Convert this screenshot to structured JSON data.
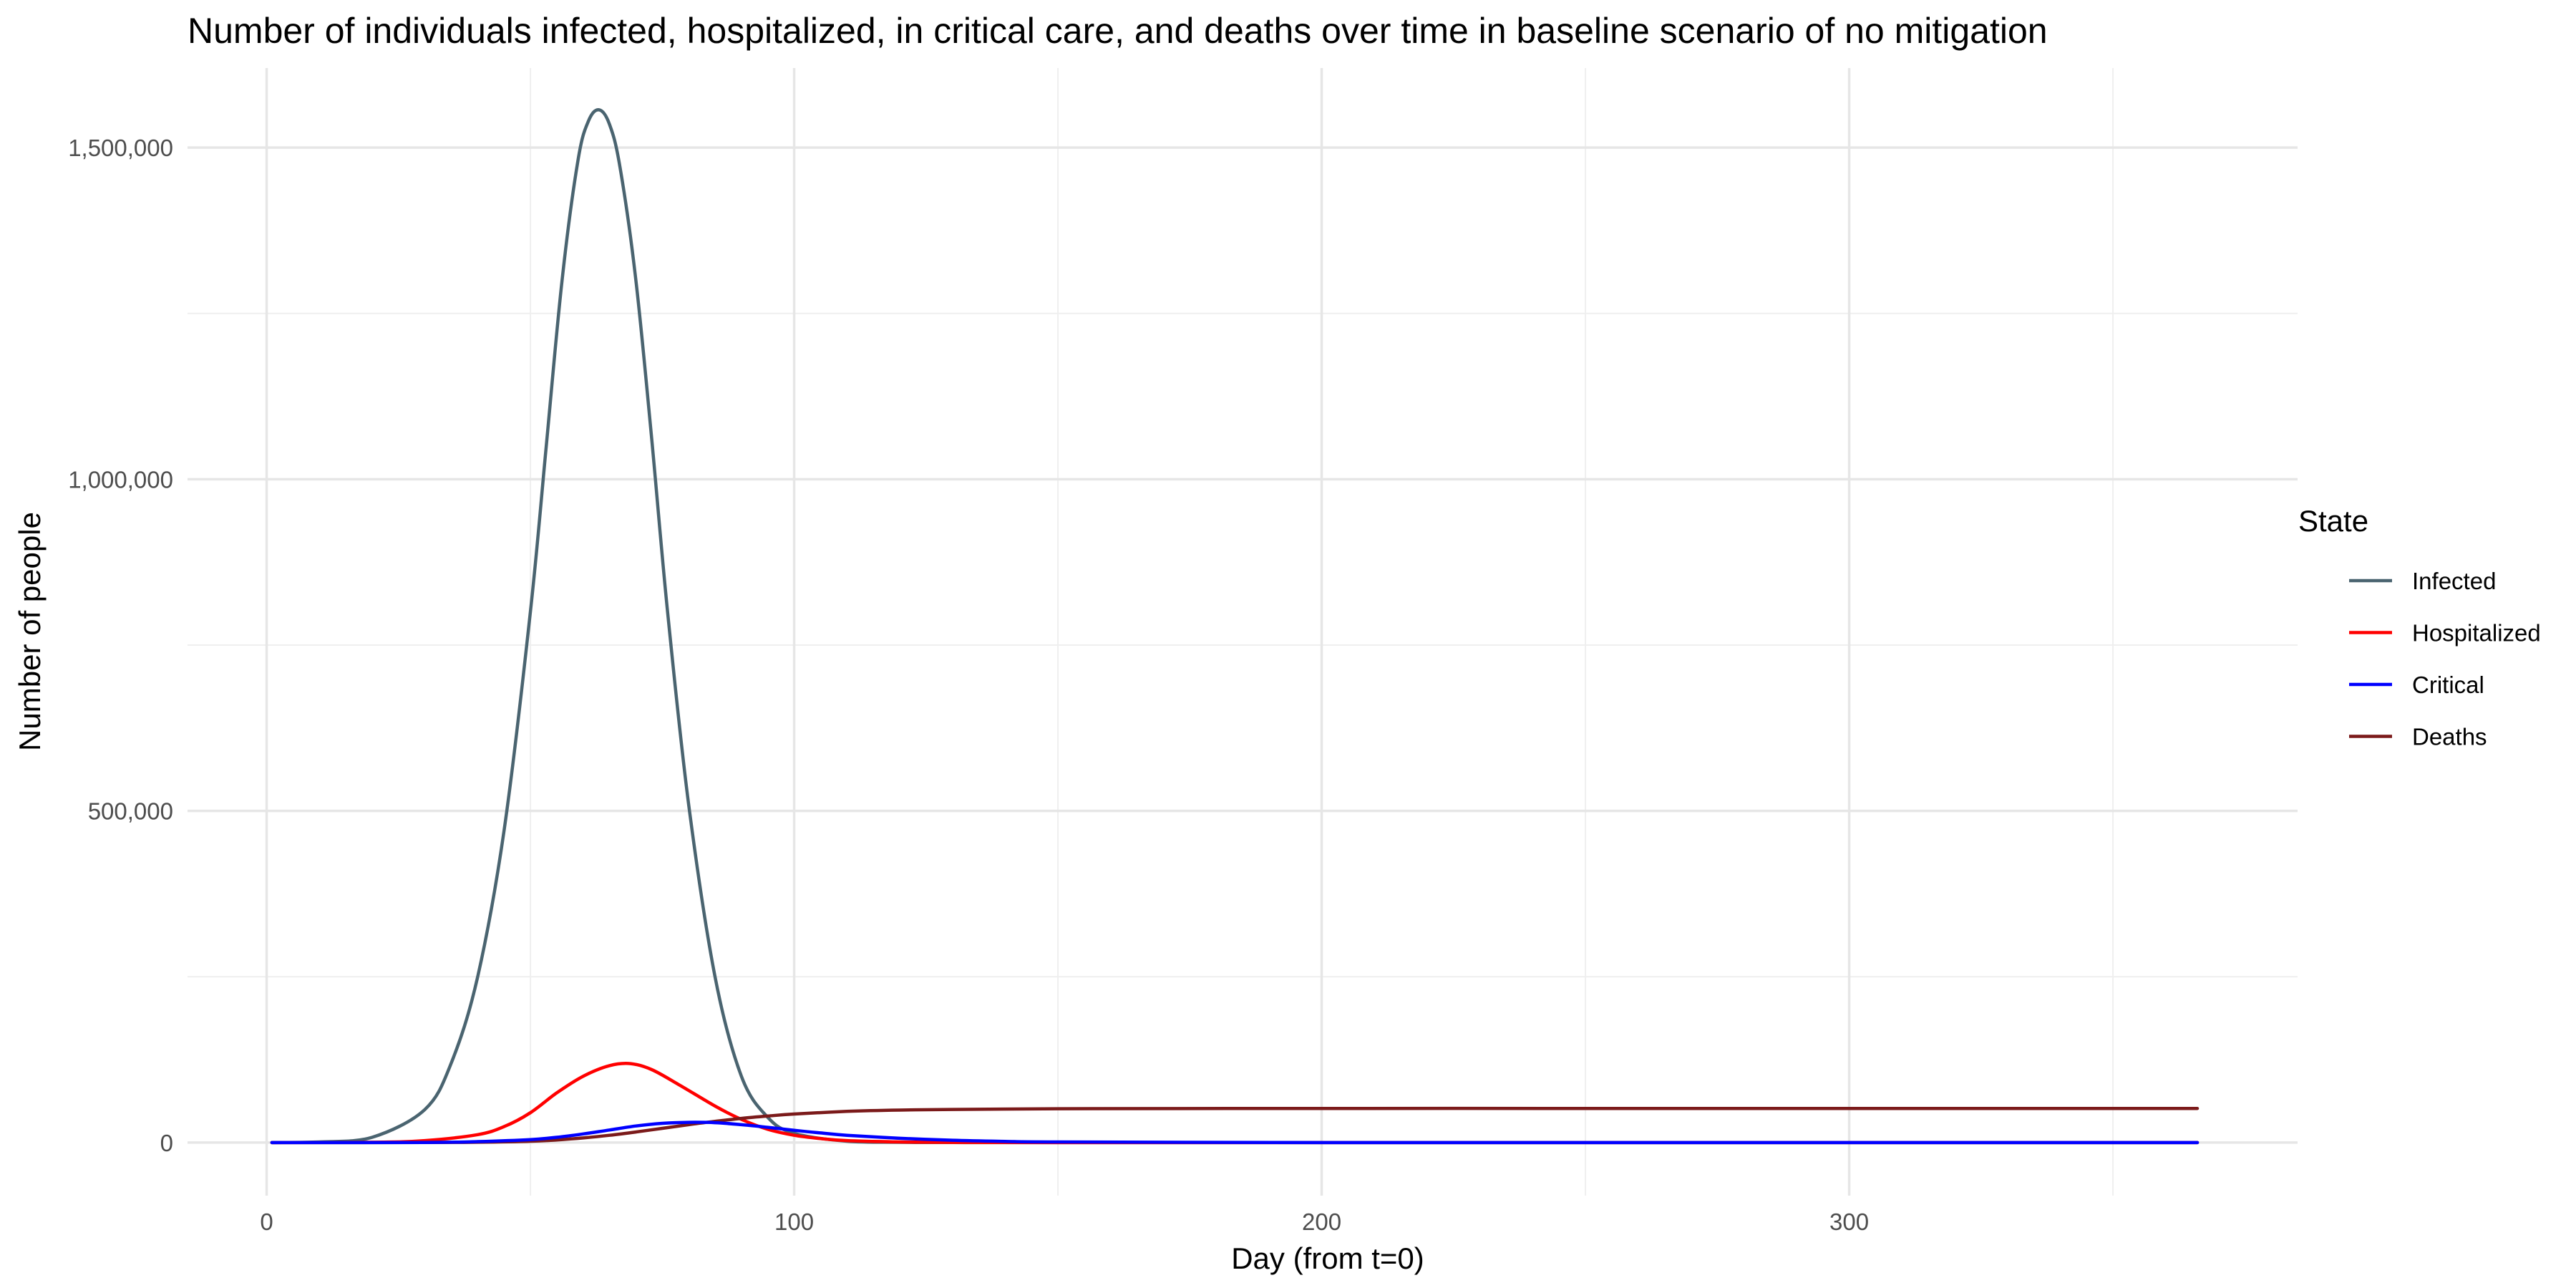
{
  "chart_data": {
    "type": "line",
    "title": "Number of individuals infected, hospitalized, in critical care, and deaths over time in baseline scenario of no mitigation",
    "xlabel": "Day (from t=0)",
    "ylabel": "Number of people",
    "xlim": [
      -15,
      385
    ],
    "ylim": [
      -80000,
      1620000
    ],
    "x_major_ticks": [
      0,
      100,
      200,
      300
    ],
    "x_minor_ticks": [
      50,
      150,
      250,
      350
    ],
    "x_tick_labels": [
      "0",
      "100",
      "200",
      "300"
    ],
    "y_major_ticks": [
      0,
      500000,
      1000000,
      1500000
    ],
    "y_minor_ticks": [
      250000,
      750000,
      1250000
    ],
    "y_tick_labels": [
      "0",
      "500,000",
      "1,000,000",
      "1,500,000"
    ],
    "grid": true,
    "legend": {
      "title": "State",
      "position": "right"
    },
    "series": [
      {
        "name": "Infected",
        "color": "#4a6470",
        "x": [
          1,
          10,
          20,
          30,
          35,
          40,
          45,
          50,
          53,
          56,
          59,
          61,
          63,
          65,
          67,
          70,
          73,
          76,
          80,
          85,
          90,
          95,
          100,
          110,
          120,
          130,
          150,
          200,
          250,
          300,
          366
        ],
        "y": [
          0,
          1000,
          8000,
          50000,
          120000,
          250000,
          470000,
          800000,
          1050000,
          1300000,
          1480000,
          1540000,
          1557000,
          1535000,
          1470000,
          1300000,
          1060000,
          800000,
          510000,
          250000,
          100000,
          38000,
          14000,
          2000,
          400,
          100,
          0,
          0,
          0,
          0,
          0
        ]
      },
      {
        "name": "Hospitalized",
        "color": "#ff0000",
        "x": [
          1,
          20,
          30,
          40,
          45,
          50,
          55,
          60,
          65,
          69,
          73,
          78,
          85,
          90,
          95,
          100,
          105,
          110,
          120,
          130,
          150,
          200,
          250,
          300,
          366
        ],
        "y": [
          0,
          500,
          3000,
          12000,
          24000,
          45000,
          75000,
          100000,
          116000,
          119000,
          110000,
          88000,
          55000,
          35000,
          20000,
          11000,
          6000,
          3000,
          1000,
          300,
          0,
          0,
          0,
          0,
          0
        ]
      },
      {
        "name": "Critical",
        "color": "#0000ff",
        "x": [
          1,
          30,
          40,
          50,
          55,
          60,
          65,
          70,
          75,
          80,
          85,
          90,
          95,
          100,
          105,
          110,
          120,
          130,
          140,
          150,
          200,
          250,
          300,
          366
        ],
        "y": [
          0,
          200,
          1500,
          4500,
          8000,
          13000,
          19000,
          25000,
          29000,
          30500,
          30000,
          27000,
          23000,
          18500,
          14500,
          11000,
          6500,
          3500,
          1800,
          900,
          0,
          0,
          0,
          0
        ]
      },
      {
        "name": "Deaths",
        "color": "#7b1a1a",
        "x": [
          1,
          30,
          40,
          50,
          55,
          60,
          65,
          70,
          75,
          80,
          85,
          90,
          95,
          100,
          110,
          120,
          130,
          150,
          200,
          250,
          300,
          366
        ],
        "y": [
          0,
          100,
          500,
          2000,
          4000,
          7000,
          11000,
          16000,
          21500,
          27000,
          32000,
          36500,
          40000,
          43000,
          47000,
          49000,
          50000,
          51000,
          51500,
          51500,
          51500,
          51500
        ]
      }
    ]
  }
}
